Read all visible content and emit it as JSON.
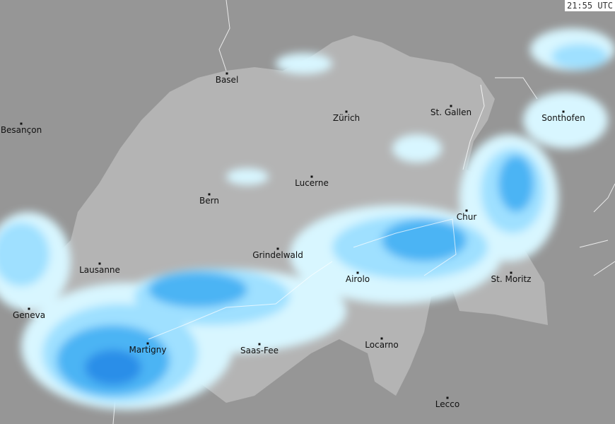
{
  "timestamp": "21:55 UTC",
  "colors": {
    "background": "#969696",
    "switzerland": "#b4b4b4",
    "lakes": "#a9a9a9",
    "precip_light": "#d8f6ff",
    "precip_moderate": "#9fe0ff",
    "precip_heavy": "#4cb4f4",
    "precip_very_heavy": "#2a8ee8"
  },
  "cities": [
    {
      "name": "Basel"
    },
    {
      "name": "Zürich"
    },
    {
      "name": "St. Gallen"
    },
    {
      "name": "Besançon"
    },
    {
      "name": "Sonthofen"
    },
    {
      "name": "Bern"
    },
    {
      "name": "Lucerne"
    },
    {
      "name": "Chur"
    },
    {
      "name": "Grindelwald"
    },
    {
      "name": "Lausanne"
    },
    {
      "name": "Airolo"
    },
    {
      "name": "St. Moritz"
    },
    {
      "name": "Geneva"
    },
    {
      "name": "Martigny"
    },
    {
      "name": "Saas-Fee"
    },
    {
      "name": "Locarno"
    },
    {
      "name": "Lecco"
    }
  ]
}
